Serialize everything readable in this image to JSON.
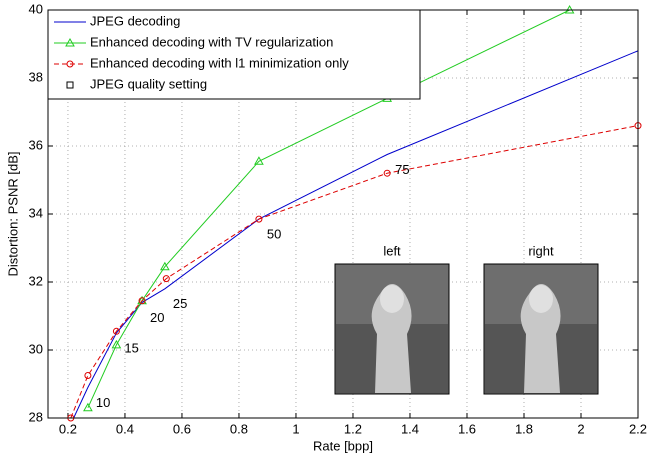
{
  "chart_data": {
    "type": "line",
    "xlabel": "Rate [bpp]",
    "ylabel": "Distortion: PSNR [dB]",
    "xlim": [
      0.13,
      2.2
    ],
    "ylim": [
      28,
      40
    ],
    "xticks": [
      0.2,
      0.4,
      0.6,
      0.8,
      1,
      1.2,
      1.4,
      1.6,
      1.8,
      2,
      2.2
    ],
    "yticks": [
      28,
      30,
      32,
      34,
      36,
      38,
      40
    ],
    "grid": true,
    "legend": "upper left",
    "series": [
      {
        "name": "JPEG decoding",
        "color": "#0000cc",
        "marker": "none",
        "dash": "solid",
        "x": [
          0.22,
          0.27,
          0.37,
          0.46,
          0.54,
          0.87,
          1.32,
          2.2
        ],
        "values": [
          28,
          28.9,
          30.5,
          31.4,
          31.8,
          33.85,
          35.75,
          38.8
        ]
      },
      {
        "name": "Enhanced decoding with TV regularization",
        "color": "#22cc22",
        "marker": "triangle",
        "dash": "solid",
        "x": [
          0.27,
          0.37,
          0.46,
          0.54,
          0.87,
          1.32,
          1.96
        ],
        "values": [
          28.3,
          30.15,
          31.45,
          32.45,
          35.55,
          37.4,
          40
        ]
      },
      {
        "name": "Enhanced decoding with l1 minimization only",
        "color": "#dd0000",
        "marker": "circle",
        "dash": "dashed",
        "x": [
          0.21,
          0.27,
          0.37,
          0.46,
          0.545,
          0.87,
          1.32,
          2.2
        ],
        "values": [
          28,
          29.25,
          30.55,
          31.45,
          32.1,
          33.85,
          35.2,
          36.6
        ]
      },
      {
        "name": "JPEG quality setting",
        "color": "#000000",
        "marker": "square",
        "dash": "none",
        "x": [],
        "values": []
      }
    ],
    "annotations": [
      "10",
      "15",
      "20",
      "25",
      "50",
      "75"
    ],
    "insets": [
      "left",
      "right"
    ]
  }
}
